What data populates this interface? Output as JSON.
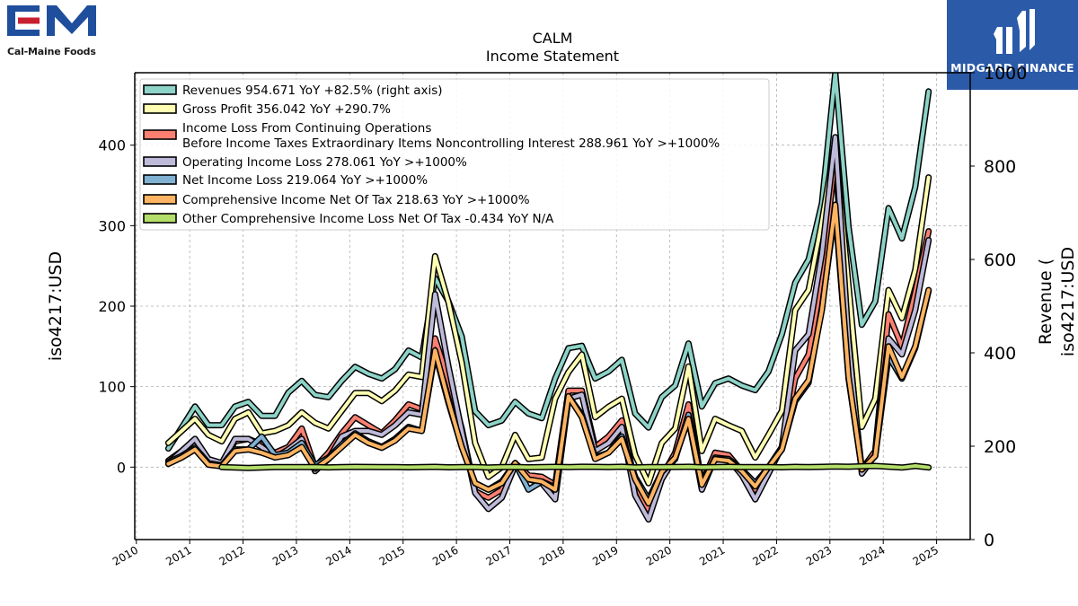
{
  "branding": {
    "company_logo_text": "Cal-Maine Foods",
    "company_monogram": "CM",
    "publisher_name": "MIDGARD FINANCE",
    "brand_color": "#2b5aa8",
    "cm_blue": "#1f4e9c",
    "cm_red": "#c8202f"
  },
  "chart_data": {
    "type": "line",
    "title": "CALM",
    "subtitle": "Income Statement",
    "ylabel_left": "iso4217:USD",
    "ylabel_right": "Revenue (\niso4217:USD",
    "ylim_left": [
      -90,
      490
    ],
    "ylim_right": [
      0,
      1000
    ],
    "xlim": [
      2009.97,
      2025.63
    ],
    "left_ticks": [
      0,
      100,
      200,
      300,
      400
    ],
    "right_ticks": [
      0,
      200,
      400,
      600,
      800,
      1000
    ],
    "x_ticks": [
      2010,
      2011,
      2012,
      2013,
      2014,
      2015,
      2016,
      2017,
      2018,
      2019,
      2020,
      2021,
      2022,
      2023,
      2024,
      2025
    ],
    "grid": true,
    "legend_position": "top-left",
    "series": [
      {
        "name": "Revenues",
        "legend": "Revenues  954.671 YoY +82.5% (right axis)",
        "color": "#8dd3c7",
        "axis": "right",
        "x": [
          2010.6,
          2010.85,
          2011.1,
          2011.35,
          2011.6,
          2011.85,
          2012.1,
          2012.35,
          2012.6,
          2012.85,
          2013.1,
          2013.35,
          2013.6,
          2013.85,
          2014.1,
          2014.35,
          2014.6,
          2014.85,
          2015.1,
          2015.35,
          2015.6,
          2015.85,
          2016.1,
          2016.35,
          2016.6,
          2016.85,
          2017.1,
          2017.35,
          2017.6,
          2017.85,
          2018.1,
          2018.35,
          2018.6,
          2018.85,
          2019.1,
          2019.35,
          2019.6,
          2019.85,
          2020.1,
          2020.35,
          2020.6,
          2020.85,
          2021.1,
          2021.35,
          2021.6,
          2021.85,
          2022.1,
          2022.35,
          2022.6,
          2022.85,
          2023.1,
          2023.35,
          2023.6,
          2023.85,
          2024.1,
          2024.35,
          2024.6,
          2024.85
        ],
        "y": [
          195,
          240,
          285,
          245,
          245,
          285,
          295,
          265,
          265,
          315,
          340,
          310,
          305,
          340,
          370,
          355,
          345,
          365,
          405,
          390,
          560,
          510,
          435,
          275,
          245,
          255,
          295,
          270,
          260,
          345,
          410,
          415,
          345,
          360,
          385,
          270,
          240,
          305,
          330,
          420,
          285,
          335,
          345,
          330,
          320,
          360,
          440,
          550,
          600,
          720,
          1000,
          670,
          460,
          510,
          710,
          645,
          755,
          960
        ]
      },
      {
        "name": "Gross Profit",
        "legend": "Gross Profit  356.042 YoY +290.7%",
        "color": "#ffffb3",
        "axis": "left",
        "x": [
          2010.6,
          2010.85,
          2011.1,
          2011.35,
          2011.6,
          2011.85,
          2012.1,
          2012.35,
          2012.6,
          2012.85,
          2013.1,
          2013.35,
          2013.6,
          2013.85,
          2014.1,
          2014.35,
          2014.6,
          2014.85,
          2015.1,
          2015.35,
          2015.6,
          2015.85,
          2016.1,
          2016.35,
          2016.6,
          2016.85,
          2017.1,
          2017.35,
          2017.6,
          2017.85,
          2018.1,
          2018.35,
          2018.6,
          2018.85,
          2019.1,
          2019.35,
          2019.6,
          2019.85,
          2020.1,
          2020.35,
          2020.6,
          2020.85,
          2021.1,
          2021.35,
          2021.6,
          2021.85,
          2022.1,
          2022.35,
          2022.6,
          2022.85,
          2023.1,
          2023.35,
          2023.6,
          2023.85,
          2024.1,
          2024.35,
          2024.6,
          2024.85
        ],
        "y": [
          30,
          45,
          60,
          40,
          32,
          60,
          68,
          42,
          45,
          52,
          68,
          55,
          48,
          70,
          92,
          92,
          82,
          95,
          115,
          112,
          262,
          205,
          130,
          30,
          -12,
          0,
          40,
          10,
          12,
          85,
          118,
          140,
          62,
          75,
          85,
          15,
          -20,
          30,
          48,
          125,
          20,
          60,
          52,
          45,
          12,
          40,
          70,
          195,
          220,
          305,
          405,
          225,
          50,
          85,
          220,
          185,
          245,
          360
        ]
      },
      {
        "name": "Income Loss From Continuing Operations Before Income Taxes Extraordinary Items Noncontrolling Interest",
        "legend": "Income Loss From Continuing Operations\nBefore Income Taxes Extraordinary Items Noncontrolling Interest  288.961 YoY >+1000%",
        "color": "#fb8072",
        "axis": "left",
        "x": [
          2010.6,
          2010.85,
          2011.1,
          2011.35,
          2011.6,
          2011.85,
          2012.1,
          2012.35,
          2012.6,
          2012.85,
          2013.1,
          2013.35,
          2013.6,
          2013.85,
          2014.1,
          2014.35,
          2014.6,
          2014.85,
          2015.1,
          2015.35,
          2015.6,
          2015.85,
          2016.1,
          2016.35,
          2016.6,
          2016.85,
          2017.1,
          2017.35,
          2017.6,
          2017.85,
          2018.1,
          2018.35,
          2018.6,
          2018.85,
          2019.1,
          2019.35,
          2019.6,
          2019.85,
          2020.1,
          2020.35,
          2020.6,
          2020.85,
          2021.1,
          2021.35,
          2021.6,
          2021.85,
          2022.1,
          2022.35,
          2022.6,
          2022.85,
          2023.1,
          2023.35,
          2023.6,
          2023.85,
          2024.1,
          2024.35,
          2024.6,
          2024.85
        ],
        "y": [
          8,
          20,
          35,
          8,
          5,
          32,
          35,
          28,
          18,
          25,
          48,
          0,
          18,
          42,
          62,
          52,
          42,
          58,
          78,
          72,
          160,
          108,
          48,
          -30,
          -38,
          -28,
          5,
          -10,
          -12,
          -22,
          95,
          95,
          25,
          38,
          58,
          -20,
          -55,
          -12,
          18,
          78,
          -20,
          18,
          15,
          -5,
          -28,
          0,
          25,
          110,
          140,
          230,
          388,
          140,
          -3,
          20,
          190,
          150,
          218,
          293
        ]
      },
      {
        "name": "Operating Income Loss",
        "legend": "Operating Income Loss  278.061 YoY >+1000%",
        "color": "#bebada",
        "axis": "left",
        "x": [
          2010.6,
          2010.85,
          2011.1,
          2011.35,
          2011.6,
          2011.85,
          2012.1,
          2012.35,
          2012.6,
          2012.85,
          2013.1,
          2013.35,
          2013.6,
          2013.85,
          2014.1,
          2014.35,
          2014.6,
          2014.85,
          2015.1,
          2015.35,
          2015.6,
          2015.85,
          2016.1,
          2016.35,
          2016.6,
          2016.85,
          2017.1,
          2017.35,
          2017.6,
          2017.85,
          2018.1,
          2018.35,
          2018.6,
          2018.85,
          2019.1,
          2019.35,
          2019.6,
          2019.85,
          2020.1,
          2020.35,
          2020.6,
          2020.85,
          2021.1,
          2021.35,
          2021.6,
          2021.85,
          2022.1,
          2022.35,
          2022.6,
          2022.85,
          2023.1,
          2023.35,
          2023.6,
          2023.85,
          2024.1,
          2024.35,
          2024.6,
          2024.85
        ],
        "y": [
          5,
          20,
          35,
          10,
          5,
          35,
          35,
          25,
          12,
          22,
          35,
          -5,
          10,
          38,
          45,
          45,
          40,
          52,
          68,
          65,
          215,
          125,
          45,
          -32,
          -52,
          -38,
          2,
          -15,
          -20,
          -40,
          85,
          90,
          20,
          30,
          50,
          -35,
          -65,
          -15,
          12,
          60,
          -28,
          12,
          10,
          -10,
          -40,
          -8,
          25,
          145,
          165,
          265,
          410,
          155,
          -8,
          15,
          160,
          140,
          195,
          282
        ]
      },
      {
        "name": "Net Income Loss",
        "legend": "Net Income Loss  219.064 YoY >+1000%",
        "color": "#80b1d3",
        "axis": "left",
        "x": [
          2010.6,
          2010.85,
          2011.1,
          2011.35,
          2011.6,
          2011.85,
          2012.1,
          2012.35,
          2012.6,
          2012.85,
          2013.1,
          2013.35,
          2013.6,
          2013.85,
          2014.1,
          2014.35,
          2014.6,
          2014.85,
          2015.1,
          2015.35,
          2015.6,
          2015.85,
          2016.1,
          2016.35,
          2016.6,
          2016.85,
          2017.1,
          2017.35,
          2017.6,
          2017.85,
          2018.1,
          2018.35,
          2018.6,
          2018.85,
          2019.1,
          2019.35,
          2019.6,
          2019.85,
          2020.1,
          2020.35,
          2020.6,
          2020.85,
          2021.1,
          2021.35,
          2021.6,
          2021.85,
          2022.1,
          2022.35,
          2022.6,
          2022.85,
          2023.1,
          2023.35,
          2023.6,
          2023.85,
          2024.1,
          2024.35,
          2024.6,
          2024.85
        ],
        "y": [
          6,
          14,
          24,
          5,
          2,
          22,
          22,
          38,
          15,
          18,
          30,
          2,
          12,
          28,
          42,
          32,
          25,
          35,
          50,
          45,
          142,
          80,
          25,
          -20,
          -28,
          -18,
          5,
          -28,
          -18,
          -25,
          88,
          65,
          12,
          18,
          38,
          -12,
          -40,
          -6,
          10,
          65,
          -18,
          10,
          10,
          -3,
          -20,
          0,
          22,
          82,
          105,
          198,
          320,
          110,
          -3,
          14,
          138,
          110,
          148,
          219
        ]
      },
      {
        "name": "Comprehensive Income Net Of Tax",
        "legend": "Comprehensive Income Net Of Tax  218.63 YoY >+1000%",
        "color": "#fdb462",
        "axis": "left",
        "x": [
          2010.6,
          2010.85,
          2011.1,
          2011.35,
          2011.6,
          2011.85,
          2012.1,
          2012.35,
          2012.6,
          2012.85,
          2013.1,
          2013.35,
          2013.6,
          2013.85,
          2014.1,
          2014.35,
          2014.6,
          2014.85,
          2015.1,
          2015.35,
          2015.6,
          2015.85,
          2016.1,
          2016.35,
          2016.6,
          2016.85,
          2017.1,
          2017.35,
          2017.6,
          2017.85,
          2018.1,
          2018.35,
          2018.6,
          2018.85,
          2019.1,
          2019.35,
          2019.6,
          2019.85,
          2020.1,
          2020.35,
          2020.6,
          2020.85,
          2021.1,
          2021.35,
          2021.6,
          2021.85,
          2022.1,
          2022.35,
          2022.6,
          2022.85,
          2023.1,
          2023.35,
          2023.6,
          2023.85,
          2024.1,
          2024.35,
          2024.6,
          2024.85
        ],
        "y": [
          4,
          12,
          22,
          3,
          1,
          20,
          22,
          18,
          12,
          15,
          25,
          -2,
          10,
          25,
          40,
          30,
          24,
          33,
          48,
          45,
          145,
          82,
          25,
          -20,
          -28,
          -20,
          5,
          -15,
          -18,
          -28,
          88,
          62,
          10,
          18,
          35,
          -15,
          -45,
          -6,
          12,
          60,
          -22,
          10,
          8,
          -5,
          -24,
          0,
          22,
          85,
          108,
          195,
          326,
          112,
          -3,
          14,
          150,
          112,
          150,
          220
        ]
      },
      {
        "name": "Other Comprehensive Income Loss Net Of Tax",
        "legend": "Other Comprehensive Income Loss Net Of Tax  -0.434 YoY N/A",
        "color": "#b3de69",
        "axis": "left",
        "x": [
          2011.6,
          2011.85,
          2012.1,
          2012.35,
          2012.6,
          2012.85,
          2013.1,
          2013.35,
          2013.6,
          2013.85,
          2014.1,
          2014.35,
          2014.6,
          2014.85,
          2015.1,
          2015.35,
          2015.6,
          2015.85,
          2016.1,
          2016.35,
          2016.6,
          2016.85,
          2017.1,
          2017.35,
          2017.6,
          2017.85,
          2018.1,
          2018.35,
          2018.6,
          2018.85,
          2019.1,
          2019.35,
          2019.6,
          2019.85,
          2020.1,
          2020.35,
          2020.6,
          2020.85,
          2021.1,
          2021.35,
          2021.6,
          2021.85,
          2022.1,
          2022.35,
          2022.6,
          2022.85,
          2023.1,
          2023.35,
          2023.6,
          2023.85,
          2024.1,
          2024.35,
          2024.6,
          2024.85
        ],
        "y": [
          0,
          -0.5,
          -1,
          -0.5,
          0,
          0,
          0,
          0,
          -0.3,
          0,
          0.3,
          0.2,
          0,
          0,
          -0.2,
          0,
          0.3,
          -0.2,
          0,
          0,
          -0.5,
          0,
          0.2,
          -0.2,
          0,
          0.3,
          0,
          0.5,
          0.3,
          0,
          0.5,
          -0.3,
          0,
          0,
          0.2,
          0.5,
          -0.2,
          0,
          0.4,
          0,
          0,
          0,
          -0.2,
          0.3,
          0,
          0.3,
          0.8,
          0.5,
          1,
          1.5,
          0.5,
          -0.5,
          1.5,
          -0.43
        ]
      }
    ]
  }
}
